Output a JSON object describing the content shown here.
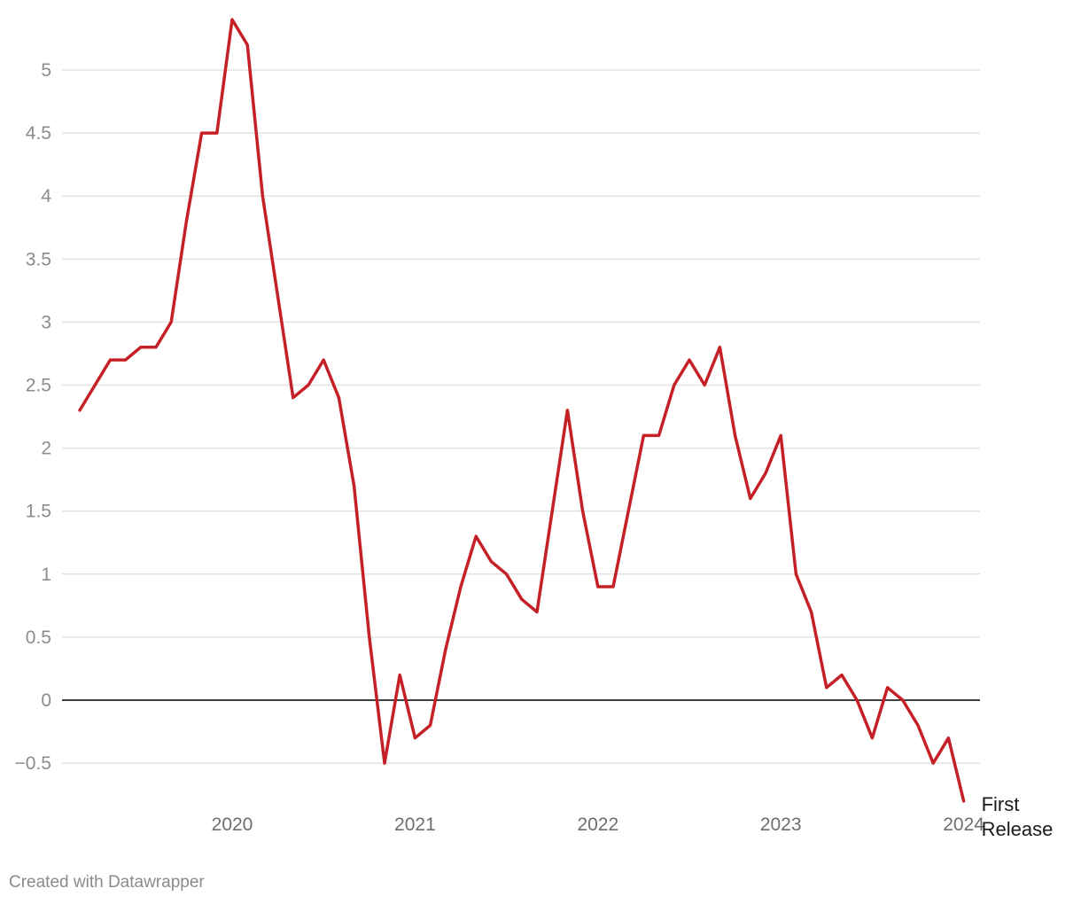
{
  "chart_data": {
    "type": "line",
    "title": "",
    "xlabel": "",
    "ylabel": "",
    "x_range": [
      "2019-03",
      "2024-01"
    ],
    "ylim": [
      -0.8,
      5.4
    ],
    "y_ticks": [
      "5",
      "4.5",
      "4",
      "3.5",
      "3",
      "2.5",
      "2",
      "1.5",
      "1",
      "0.5",
      "0",
      "−0.5"
    ],
    "y_tick_values": [
      5,
      4.5,
      4,
      3.5,
      3,
      2.5,
      2,
      1.5,
      1,
      0.5,
      0,
      -0.5
    ],
    "x_ticks": [
      "2020",
      "2021",
      "2022",
      "2023",
      "2024"
    ],
    "x_tick_dates": [
      "2020-01",
      "2021-01",
      "2022-01",
      "2023-01",
      "2024-01"
    ],
    "grid": true,
    "zero_line": true,
    "line_color": "#c62027",
    "series": [
      {
        "name": "First Release",
        "label_lines": [
          "First",
          "Release"
        ],
        "x": [
          "2019-03",
          "2019-04",
          "2019-05",
          "2019-06",
          "2019-07",
          "2019-08",
          "2019-09",
          "2019-10",
          "2019-11",
          "2019-12",
          "2020-01",
          "2020-02",
          "2020-03",
          "2020-04",
          "2020-05",
          "2020-06",
          "2020-07",
          "2020-08",
          "2020-09",
          "2020-10",
          "2020-11",
          "2020-12",
          "2021-01",
          "2021-02",
          "2021-03",
          "2021-04",
          "2021-05",
          "2021-06",
          "2021-07",
          "2021-08",
          "2021-09",
          "2021-10",
          "2021-11",
          "2021-12",
          "2022-01",
          "2022-02",
          "2022-03",
          "2022-04",
          "2022-05",
          "2022-06",
          "2022-07",
          "2022-08",
          "2022-09",
          "2022-10",
          "2022-11",
          "2022-12",
          "2023-01",
          "2023-02",
          "2023-03",
          "2023-04",
          "2023-05",
          "2023-06",
          "2023-07",
          "2023-08",
          "2023-09",
          "2023-10",
          "2023-11",
          "2023-12",
          "2024-01"
        ],
        "values": [
          2.3,
          2.5,
          2.7,
          2.7,
          2.8,
          2.8,
          3.0,
          3.8,
          4.5,
          4.5,
          5.4,
          5.2,
          4.0,
          3.2,
          2.4,
          2.5,
          2.7,
          2.4,
          1.7,
          0.5,
          -0.5,
          0.2,
          -0.3,
          -0.2,
          0.4,
          0.9,
          1.3,
          1.1,
          1.0,
          0.8,
          0.7,
          1.5,
          2.3,
          1.5,
          0.9,
          0.9,
          1.5,
          2.1,
          2.1,
          2.5,
          2.7,
          2.5,
          2.8,
          2.1,
          1.6,
          1.8,
          2.1,
          1.0,
          0.7,
          0.1,
          0.2,
          0.0,
          -0.3,
          0.1,
          0.0,
          -0.2,
          -0.5,
          -0.3,
          -0.8
        ]
      }
    ]
  },
  "footer": {
    "credit": "Created with Datawrapper"
  }
}
